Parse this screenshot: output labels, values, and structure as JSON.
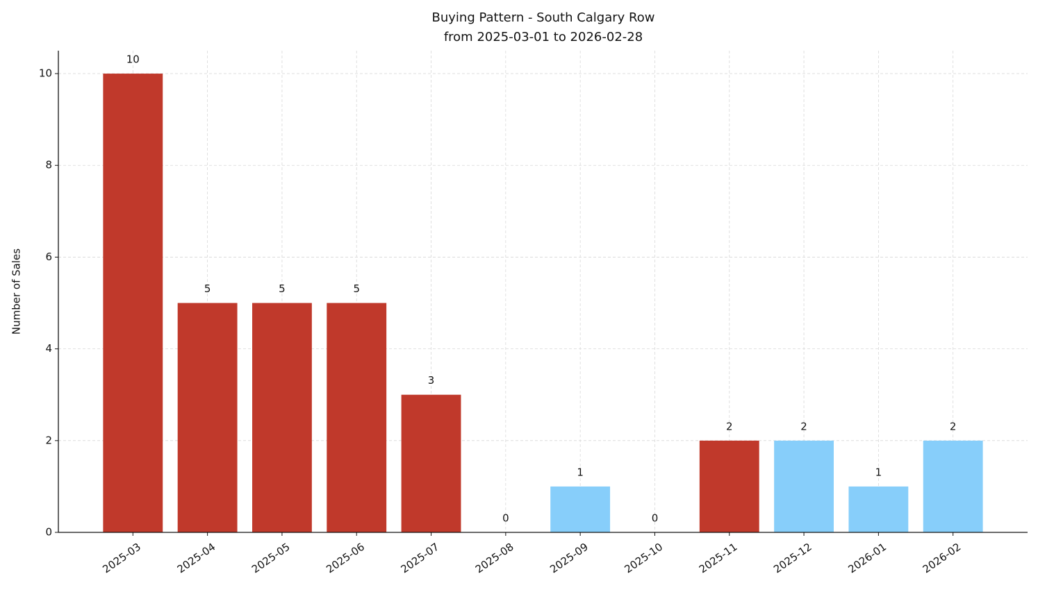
{
  "chart_data": {
    "type": "bar",
    "title": "Buying Pattern - South Calgary Row",
    "subtitle": "from 2025-03-01 to 2026-02-28",
    "y_label": "Number of Sales",
    "categories": [
      "2025-03",
      "2025-04",
      "2025-05",
      "2025-06",
      "2025-07",
      "2025-08",
      "2025-09",
      "2025-10",
      "2025-11",
      "2025-12",
      "2026-01",
      "2026-02"
    ],
    "values": [
      10,
      5,
      5,
      5,
      3,
      0,
      1,
      0,
      2,
      2,
      1,
      2
    ],
    "colors": [
      "#c0392b",
      "#c0392b",
      "#c0392b",
      "#c0392b",
      "#c0392b",
      "#87cefa",
      "#87cefa",
      "#87cefa",
      "#c0392b",
      "#87cefa",
      "#87cefa",
      "#87cefa"
    ],
    "ylim": [
      0,
      10.5
    ],
    "yticks": [
      0,
      2,
      4,
      6,
      8,
      10
    ],
    "grid": true
  }
}
